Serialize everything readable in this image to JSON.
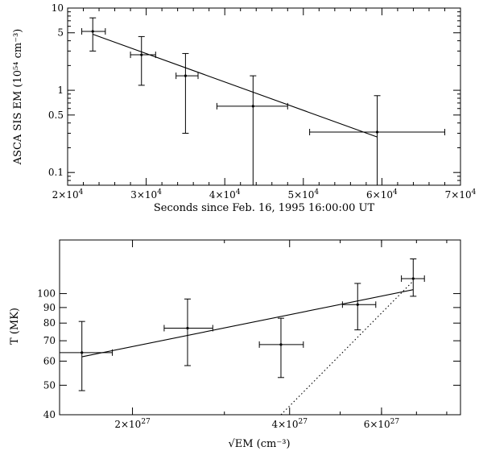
{
  "chart_data": [
    {
      "type": "scatter",
      "yscale": "log",
      "xlim": [
        20000,
        70000
      ],
      "ylim": [
        0.07,
        10
      ],
      "xlabel": "Seconds since Feb. 16, 1995 16:00:00 UT",
      "ylabel": "ASCA SIS EM (10⁵⁴ cm⁻³)",
      "xticks": [
        {
          "v": 20000,
          "m": "2×10",
          "e": "4"
        },
        {
          "v": 30000,
          "m": "3×10",
          "e": "4"
        },
        {
          "v": 40000,
          "m": "4×10",
          "e": "4"
        },
        {
          "v": 50000,
          "m": "5×10",
          "e": "4"
        },
        {
          "v": 60000,
          "m": "6×10",
          "e": "4"
        },
        {
          "v": 70000,
          "m": "7×10",
          "e": "4"
        }
      ],
      "yticks": [
        {
          "v": 0.1,
          "label": "0.1"
        },
        {
          "v": 0.5,
          "label": "0.5"
        },
        {
          "v": 1,
          "label": "1"
        },
        {
          "v": 5,
          "label": "5"
        },
        {
          "v": 10,
          "label": "10"
        }
      ],
      "points": [
        {
          "x": 23200,
          "y": 5.2,
          "xlo": 21800,
          "xhi": 24800,
          "ylo": 3.0,
          "yhi": 7.6
        },
        {
          "x": 29400,
          "y": 2.7,
          "xlo": 28000,
          "xhi": 31200,
          "ylo": 1.15,
          "yhi": 4.5
        },
        {
          "x": 35000,
          "y": 1.5,
          "xlo": 33800,
          "xhi": 36600,
          "ylo": 0.3,
          "yhi": 2.8
        },
        {
          "x": 43600,
          "y": 0.64,
          "xlo": 39000,
          "xhi": 48000,
          "ylo": 0.04,
          "yhi": 1.5
        },
        {
          "x": 59400,
          "y": 0.31,
          "xlo": 50800,
          "xhi": 68000,
          "ylo": 0.04,
          "yhi": 0.86
        }
      ],
      "fit_line": [
        {
          "x": 23200,
          "y": 4.8
        },
        {
          "x": 59400,
          "y": 0.27
        }
      ]
    },
    {
      "type": "scatter",
      "xscale": "log",
      "yscale": "log",
      "xlim": [
        1.45e+27,
        8.5e+27
      ],
      "ylim": [
        40,
        150
      ],
      "xlabel": "√EM (cm⁻³)",
      "ylabel": "T (MK)",
      "xticks": [
        {
          "v": 2e+27,
          "m": "2×10",
          "e": "27"
        },
        {
          "v": 4e+27,
          "m": "4×10",
          "e": "27"
        },
        {
          "v": 6e+27,
          "m": "6×10",
          "e": "27"
        }
      ],
      "yticks": [
        {
          "v": 40,
          "label": "40"
        },
        {
          "v": 50,
          "label": "50"
        },
        {
          "v": 60,
          "label": "60"
        },
        {
          "v": 70,
          "label": "70"
        },
        {
          "v": 80,
          "label": "80"
        },
        {
          "v": 90,
          "label": "90"
        },
        {
          "v": 100,
          "label": "100"
        }
      ],
      "points": [
        {
          "x": 1.6e+27,
          "y": 64,
          "xlo": 1.45e+27,
          "xhi": 1.83e+27,
          "ylo": 48,
          "yhi": 81
        },
        {
          "x": 2.55e+27,
          "y": 77,
          "xlo": 2.3e+27,
          "xhi": 2.85e+27,
          "ylo": 58,
          "yhi": 96
        },
        {
          "x": 3.85e+27,
          "y": 68,
          "xlo": 3.5e+27,
          "xhi": 4.25e+27,
          "ylo": 53,
          "yhi": 83
        },
        {
          "x": 5.4e+27,
          "y": 92,
          "xlo": 5.05e+27,
          "xhi": 5.85e+27,
          "ylo": 76,
          "yhi": 108
        },
        {
          "x": 6.9e+27,
          "y": 112,
          "xlo": 6.55e+27,
          "xhi": 7.25e+27,
          "ylo": 98,
          "yhi": 130
        }
      ],
      "fit_line": [
        {
          "x": 1.6e+27,
          "y": 62
        },
        {
          "x": 6.9e+27,
          "y": 103
        }
      ],
      "dotted_line": [
        {
          "x": 3.85e+27,
          "y": 40
        },
        {
          "x": 6.9e+27,
          "y": 110
        }
      ]
    }
  ]
}
